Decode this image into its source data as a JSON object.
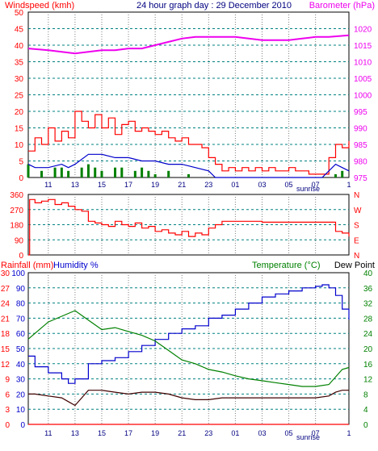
{
  "title": "24 hour graph day : 29 December 2010",
  "sunrise_label": "sunrise",
  "x_ticks": [
    "11",
    "13",
    "15",
    "17",
    "19",
    "21",
    "23",
    "01",
    "03",
    "05",
    "07",
    "1"
  ],
  "colors": {
    "red": "#ff0000",
    "blue": "#0000cc",
    "green": "#008000",
    "magenta": "#ee00ee",
    "dark": "#400000",
    "grid": "#808080",
    "axis": "#000000"
  },
  "chart_data": [
    {
      "type": "line",
      "name": "wind-barometer",
      "left_title": "Windspeed (kmh)",
      "right_title": "Barometer (hPa)",
      "left_ticks": [
        "50",
        "45",
        "40",
        "35",
        "30",
        "25",
        "20",
        "15",
        "10",
        "5",
        "0"
      ],
      "right_ticks": [
        "1020",
        "1015",
        "1010",
        "1005",
        "1000",
        "995",
        "990",
        "985",
        "980",
        "975"
      ],
      "ylim_left": [
        0,
        50
      ],
      "ylim_right": [
        975,
        1025
      ],
      "x_range_hours": [
        9.5,
        33.5
      ],
      "barometer": {
        "x": [
          9.5,
          11,
          12,
          13,
          14,
          15,
          16,
          17,
          18,
          19,
          20,
          21,
          22,
          23,
          24,
          25,
          26,
          27,
          28,
          29,
          30,
          31,
          32,
          33.5
        ],
        "y": [
          1014,
          1013.5,
          1013,
          1012.5,
          1013,
          1013.5,
          1013.5,
          1014,
          1014,
          1015,
          1016,
          1017,
          1017.5,
          1017.5,
          1017.5,
          1017.5,
          1017,
          1016.5,
          1016.5,
          1016.5,
          1017,
          1017.5,
          1017.5,
          1018
        ]
      },
      "wind_gust": {
        "x": [
          9.5,
          10,
          10.5,
          11,
          11.5,
          12,
          12.5,
          13,
          13.5,
          14,
          14.5,
          15,
          15.5,
          16,
          16.5,
          17,
          17.5,
          18,
          18.5,
          19,
          19.5,
          20,
          20.5,
          21,
          21.5,
          22,
          22.5,
          23,
          23.5,
          24,
          24.5,
          25,
          25.5,
          26,
          26.5,
          27,
          27.5,
          28,
          28.5,
          29,
          29.5,
          30,
          30.5,
          31,
          31.5,
          32,
          32.5,
          33,
          33.5
        ],
        "y": [
          8,
          12,
          10,
          15,
          11,
          14,
          12,
          20,
          17,
          15,
          19,
          15,
          18,
          13,
          16,
          17,
          14,
          15,
          14,
          13,
          14,
          12,
          11,
          12,
          10,
          10,
          9,
          6,
          4,
          2,
          3,
          2,
          3,
          2,
          3,
          2,
          3,
          2,
          2,
          3,
          2,
          2,
          1,
          1,
          1,
          6,
          10,
          9,
          11
        ]
      },
      "wind_avg": {
        "x": [
          9.5,
          10,
          11,
          12,
          12.5,
          13,
          14,
          15,
          16,
          17,
          18,
          19,
          20,
          21,
          22,
          23,
          23.5,
          24,
          25,
          26,
          27,
          28,
          29,
          30,
          31,
          31.5,
          32,
          32.5,
          33,
          33.5
        ],
        "y": [
          4,
          3,
          3,
          4,
          3,
          4,
          7,
          7,
          6,
          6,
          5,
          5,
          4,
          4,
          3,
          2,
          0,
          0,
          0,
          0,
          0,
          0,
          0,
          0,
          0,
          0,
          2,
          4,
          3,
          2
        ]
      },
      "wind_bars": {
        "x": [
          9.5,
          10.5,
          11.5,
          12,
          12.5,
          13.5,
          14,
          14.5,
          15,
          16,
          16.5,
          17.5,
          18,
          18.5,
          19,
          20,
          21.5,
          32.5,
          33
        ],
        "y": [
          4,
          2,
          3,
          3,
          2,
          3,
          4,
          3,
          2,
          3,
          3,
          2,
          3,
          2,
          1,
          2,
          1,
          1,
          2
        ]
      }
    },
    {
      "type": "scatter",
      "name": "wind-direction",
      "left_ticks": [
        "360",
        "270",
        "180",
        "90",
        "0"
      ],
      "right_ticks": [
        "N",
        "W",
        "S",
        "E",
        "N"
      ],
      "ylim": [
        0,
        360
      ],
      "direction": {
        "x": [
          9.5,
          9.6,
          10,
          10.5,
          11,
          11.5,
          12,
          12.5,
          13,
          13.5,
          14,
          14.5,
          15,
          15.5,
          16,
          16.5,
          17,
          17.5,
          18,
          18.5,
          19,
          19.5,
          20,
          20.5,
          21,
          21.5,
          22,
          22.5,
          23,
          23.5,
          24,
          25,
          26,
          27,
          28,
          29,
          30,
          31,
          32,
          32.5,
          33,
          33.5
        ],
        "y": [
          0,
          330,
          310,
          320,
          330,
          300,
          310,
          290,
          270,
          260,
          200,
          190,
          180,
          170,
          200,
          180,
          170,
          190,
          160,
          170,
          140,
          150,
          130,
          120,
          140,
          110,
          130,
          120,
          160,
          180,
          200,
          200,
          200,
          195,
          195,
          195,
          195,
          195,
          195,
          140,
          130,
          110
        ]
      }
    },
    {
      "type": "line",
      "name": "rain-humidity-temperature",
      "left_title": "Rainfall (mm)",
      "left_title2": "Humidity %",
      "right_title": "Temperature (°C)",
      "right_title2": "Dew Point",
      "rain_ticks": [
        "30",
        "27",
        "24",
        "21",
        "18",
        "15",
        "12",
        "9",
        "6",
        "3",
        "0"
      ],
      "humidity_ticks": [
        "100",
        "90",
        "80",
        "70",
        "60",
        "50",
        "40",
        "30",
        "20",
        "10",
        "0"
      ],
      "temp_ticks": [
        "40",
        "36",
        "32",
        "28",
        "24",
        "20",
        "16",
        "12",
        "8",
        "4",
        "0"
      ],
      "ylim_humidity": [
        0,
        100
      ],
      "ylim_temp": [
        0,
        40
      ],
      "humidity": {
        "x": [
          9.5,
          10,
          11,
          12,
          12.5,
          13,
          14,
          15,
          16,
          17,
          18,
          19,
          20,
          21,
          22,
          23,
          24,
          25,
          26,
          27,
          28,
          29,
          30,
          31,
          31.5,
          32,
          32.5,
          33,
          33.5
        ],
        "y": [
          45,
          38,
          34,
          30,
          27,
          30,
          40,
          42,
          44,
          48,
          52,
          56,
          60,
          63,
          65,
          70,
          72,
          76,
          80,
          84,
          86,
          88,
          90,
          91,
          92,
          90,
          85,
          76,
          69
        ]
      },
      "temperature": {
        "x": [
          9.5,
          10,
          11,
          12,
          13,
          14,
          15,
          16,
          17,
          18,
          19,
          20,
          21,
          22,
          23,
          24,
          25,
          26,
          27,
          28,
          29,
          30,
          31,
          32,
          33,
          33.5
        ],
        "y": [
          22.5,
          24,
          27,
          28.5,
          30,
          27.5,
          25,
          25.5,
          24.5,
          23.5,
          22,
          19.5,
          17,
          16,
          14.5,
          13.8,
          12.8,
          12,
          11.5,
          11,
          10.5,
          10,
          10,
          10.5,
          14.5,
          15
        ]
      },
      "dew_point": {
        "x": [
          9.5,
          10,
          11,
          12,
          12.5,
          13,
          13.5,
          14,
          15,
          16,
          17,
          18,
          19,
          20,
          21,
          22,
          23,
          24,
          25,
          26,
          27,
          28,
          29,
          30,
          31,
          32,
          32.5,
          33,
          33.5
        ],
        "y": [
          8,
          8,
          7.5,
          7,
          6,
          5,
          7,
          9,
          9,
          8.5,
          8,
          8.5,
          8.5,
          8,
          7,
          6.5,
          6.5,
          7,
          7,
          7,
          7,
          7,
          7,
          7,
          7,
          7.5,
          8.5,
          9,
          9
        ]
      },
      "rain": {
        "x": [
          9.5,
          33.5
        ],
        "y": [
          0,
          0
        ]
      }
    }
  ]
}
